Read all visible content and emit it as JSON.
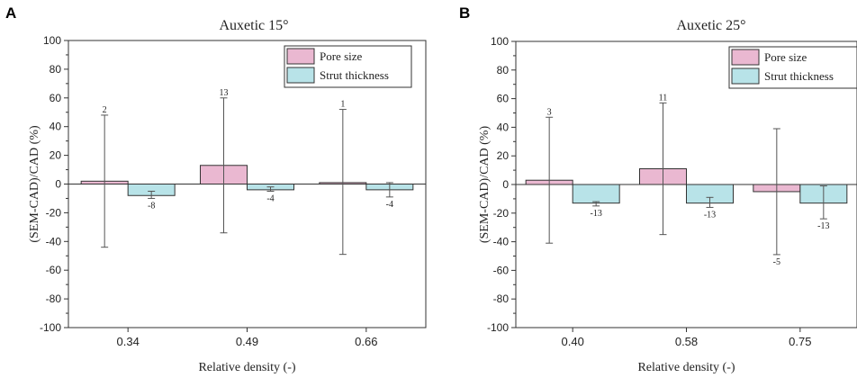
{
  "colors": {
    "pore_fill": "#eab8d1",
    "strut_fill": "#b8e3e8",
    "bar_stroke": "#333333",
    "axis": "#333333",
    "errorbar": "#555555"
  },
  "chart_data": [
    {
      "type": "bar",
      "panel": "A",
      "title": "Auxetic 15°",
      "xlabel": "Relative density (-)",
      "ylabel": "(SEM-CAD)/CAD (%)",
      "ylim": [
        -100,
        100
      ],
      "yticks": [
        100,
        80,
        60,
        40,
        20,
        0,
        -20,
        -40,
        -60,
        -80,
        -100
      ],
      "categories": [
        "0.34",
        "0.49",
        "0.66"
      ],
      "legend_position": "top-right",
      "series": [
        {
          "name": "Pore size",
          "values": [
            2,
            13,
            1
          ],
          "error_low": [
            -44,
            -34,
            -49
          ],
          "error_high": [
            48,
            60,
            52
          ],
          "labels": [
            "2",
            "13",
            "1"
          ]
        },
        {
          "name": "Strut thickness",
          "values": [
            -8,
            -4,
            -4
          ],
          "error_low": [
            -10,
            -5,
            -9
          ],
          "error_high": [
            -5,
            -2,
            1
          ],
          "labels": [
            "-8",
            "-4",
            "-4"
          ]
        }
      ]
    },
    {
      "type": "bar",
      "panel": "B",
      "title": "Auxetic 25°",
      "xlabel": "Relative density (-)",
      "ylabel": "(SEM-CAD)/CAD (%)",
      "ylim": [
        -100,
        100
      ],
      "yticks": [
        100,
        80,
        60,
        40,
        20,
        0,
        -20,
        -40,
        -60,
        -80,
        -100
      ],
      "categories": [
        "0.40",
        "0.58",
        "0.75"
      ],
      "legend_position": "top-right",
      "series": [
        {
          "name": "Pore size",
          "values": [
            3,
            11,
            -5
          ],
          "error_low": [
            -41,
            -35,
            -49
          ],
          "error_high": [
            47,
            57,
            39
          ],
          "labels": [
            "3",
            "11",
            "-5"
          ]
        },
        {
          "name": "Strut thickness",
          "values": [
            -13,
            -13,
            -13
          ],
          "error_low": [
            -15,
            -16,
            -24
          ],
          "error_high": [
            -12,
            -9,
            -1
          ],
          "labels": [
            "-13",
            "-13",
            "-13"
          ]
        }
      ]
    }
  ]
}
